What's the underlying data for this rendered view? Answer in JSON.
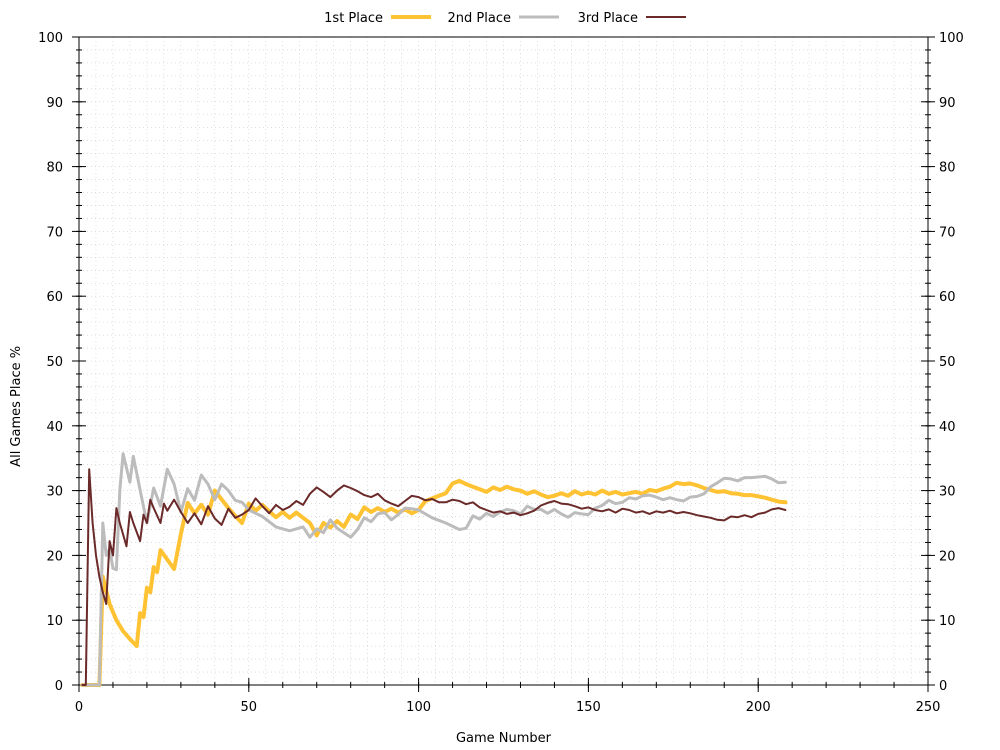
{
  "chart_data": {
    "type": "line",
    "xlabel": "Game Number",
    "ylabel": "All Games Place %",
    "xlim": [
      0,
      250
    ],
    "ylim": [
      0,
      100
    ],
    "x_ticks": [
      "0",
      "50",
      "100",
      "150",
      "200",
      "250"
    ],
    "y_ticks": [
      "0",
      "10",
      "20",
      "30",
      "40",
      "50",
      "60",
      "70",
      "80",
      "90",
      "100"
    ],
    "grid": true,
    "legend_position": "top-center",
    "series": [
      {
        "name": "1st Place",
        "color": "#FFC233",
        "width": 4,
        "points": [
          [
            1,
            0
          ],
          [
            6,
            0
          ],
          [
            7,
            16.7
          ],
          [
            9,
            12.5
          ],
          [
            11,
            10
          ],
          [
            13,
            8.3
          ],
          [
            15,
            7.1
          ],
          [
            17,
            6
          ],
          [
            18,
            11.1
          ],
          [
            19,
            10.5
          ],
          [
            20,
            15
          ],
          [
            21,
            14.3
          ],
          [
            22,
            18.2
          ],
          [
            23,
            17.4
          ],
          [
            24,
            20.8
          ],
          [
            28,
            17.9
          ],
          [
            30,
            23.3
          ],
          [
            32,
            28.1
          ],
          [
            34,
            26.5
          ],
          [
            36,
            27.8
          ],
          [
            38,
            26.3
          ],
          [
            40,
            30
          ],
          [
            44,
            27.3
          ],
          [
            46,
            26.1
          ],
          [
            48,
            25
          ],
          [
            50,
            28
          ],
          [
            52,
            26.9
          ],
          [
            54,
            27.8
          ],
          [
            56,
            26.8
          ],
          [
            58,
            25.9
          ],
          [
            60,
            26.7
          ],
          [
            62,
            25.8
          ],
          [
            64,
            26.6
          ],
          [
            66,
            25.8
          ],
          [
            68,
            25
          ],
          [
            70,
            23.1
          ],
          [
            72,
            25
          ],
          [
            74,
            24.3
          ],
          [
            76,
            25.3
          ],
          [
            78,
            24.4
          ],
          [
            80,
            26.3
          ],
          [
            82,
            25.6
          ],
          [
            84,
            27.4
          ],
          [
            86,
            26.7
          ],
          [
            88,
            27.3
          ],
          [
            90,
            26.7
          ],
          [
            92,
            27.2
          ],
          [
            94,
            26.6
          ],
          [
            96,
            27.1
          ],
          [
            98,
            26.5
          ],
          [
            100,
            27
          ],
          [
            102,
            28.4
          ],
          [
            104,
            28.8
          ],
          [
            106,
            29.2
          ],
          [
            108,
            29.6
          ],
          [
            110,
            31.1
          ],
          [
            112,
            31.5
          ],
          [
            114,
            31
          ],
          [
            116,
            30.6
          ],
          [
            118,
            30.2
          ],
          [
            120,
            29.8
          ],
          [
            122,
            30.5
          ],
          [
            124,
            30.1
          ],
          [
            126,
            30.6
          ],
          [
            128,
            30.2
          ],
          [
            130,
            30
          ],
          [
            132,
            29.5
          ],
          [
            134,
            29.9
          ],
          [
            136,
            29.4
          ],
          [
            138,
            29
          ],
          [
            140,
            29.2
          ],
          [
            142,
            29.6
          ],
          [
            144,
            29.2
          ],
          [
            146,
            29.9
          ],
          [
            148,
            29.4
          ],
          [
            150,
            29.7
          ],
          [
            152,
            29.4
          ],
          [
            154,
            30
          ],
          [
            156,
            29.5
          ],
          [
            158,
            29.8
          ],
          [
            160,
            29.4
          ],
          [
            162,
            29.6
          ],
          [
            164,
            29.8
          ],
          [
            166,
            29.5
          ],
          [
            168,
            30.1
          ],
          [
            170,
            29.9
          ],
          [
            172,
            30.3
          ],
          [
            174,
            30.6
          ],
          [
            176,
            31.2
          ],
          [
            178,
            31
          ],
          [
            180,
            31.1
          ],
          [
            182,
            30.8
          ],
          [
            184,
            30.4
          ],
          [
            186,
            30.1
          ],
          [
            188,
            29.8
          ],
          [
            190,
            29.9
          ],
          [
            192,
            29.6
          ],
          [
            194,
            29.5
          ],
          [
            196,
            29.3
          ],
          [
            198,
            29.3
          ],
          [
            200,
            29.1
          ],
          [
            202,
            28.9
          ],
          [
            204,
            28.6
          ],
          [
            206,
            28.3
          ],
          [
            208,
            28.2
          ]
        ]
      },
      {
        "name": "2nd Place",
        "color": "#BCBCBC",
        "width": 3,
        "points": [
          [
            1,
            0
          ],
          [
            6,
            0
          ],
          [
            7,
            25
          ],
          [
            8,
            20
          ],
          [
            9,
            21
          ],
          [
            10,
            18
          ],
          [
            11,
            17.8
          ],
          [
            12,
            30
          ],
          [
            13,
            35.7
          ],
          [
            15,
            31.3
          ],
          [
            16,
            35.3
          ],
          [
            18,
            30.1
          ],
          [
            20,
            25
          ],
          [
            22,
            30.4
          ],
          [
            24,
            27.6
          ],
          [
            26,
            33.3
          ],
          [
            28,
            31
          ],
          [
            30,
            26.7
          ],
          [
            32,
            30.3
          ],
          [
            34,
            28.5
          ],
          [
            36,
            32.4
          ],
          [
            38,
            31
          ],
          [
            40,
            28.6
          ],
          [
            42,
            31
          ],
          [
            44,
            30
          ],
          [
            46,
            28.5
          ],
          [
            48,
            28.2
          ],
          [
            50,
            27
          ],
          [
            54,
            26
          ],
          [
            58,
            24.4
          ],
          [
            62,
            23.8
          ],
          [
            66,
            24.4
          ],
          [
            68,
            22.8
          ],
          [
            70,
            24.1
          ],
          [
            72,
            23.5
          ],
          [
            74,
            25.5
          ],
          [
            76,
            24.2
          ],
          [
            78,
            23.5
          ],
          [
            80,
            22.8
          ],
          [
            82,
            24
          ],
          [
            84,
            25.8
          ],
          [
            86,
            25.2
          ],
          [
            88,
            26.4
          ],
          [
            90,
            26.6
          ],
          [
            92,
            25.5
          ],
          [
            94,
            26.3
          ],
          [
            96,
            27.3
          ],
          [
            98,
            27.2
          ],
          [
            100,
            27
          ],
          [
            104,
            25.8
          ],
          [
            108,
            25
          ],
          [
            112,
            24
          ],
          [
            114,
            24.2
          ],
          [
            116,
            26.1
          ],
          [
            118,
            25.6
          ],
          [
            120,
            26.5
          ],
          [
            122,
            26
          ],
          [
            124,
            26.7
          ],
          [
            126,
            27.1
          ],
          [
            128,
            26.9
          ],
          [
            130,
            26.4
          ],
          [
            132,
            27.6
          ],
          [
            134,
            27.1
          ],
          [
            136,
            27.1
          ],
          [
            138,
            26.5
          ],
          [
            140,
            27.1
          ],
          [
            142,
            26.4
          ],
          [
            144,
            25.9
          ],
          [
            146,
            26.6
          ],
          [
            148,
            26.4
          ],
          [
            150,
            26.3
          ],
          [
            152,
            27.3
          ],
          [
            154,
            27.7
          ],
          [
            156,
            28.5
          ],
          [
            158,
            28
          ],
          [
            160,
            28.2
          ],
          [
            162,
            28.9
          ],
          [
            164,
            28.7
          ],
          [
            166,
            29.2
          ],
          [
            168,
            29.3
          ],
          [
            170,
            29
          ],
          [
            172,
            28.6
          ],
          [
            174,
            28.9
          ],
          [
            176,
            28.6
          ],
          [
            178,
            28.4
          ],
          [
            180,
            29
          ],
          [
            182,
            29.1
          ],
          [
            184,
            29.5
          ],
          [
            186,
            30.6
          ],
          [
            188,
            31.2
          ],
          [
            190,
            31.9
          ],
          [
            192,
            31.8
          ],
          [
            194,
            31.5
          ],
          [
            196,
            32
          ],
          [
            198,
            32
          ],
          [
            200,
            32.1
          ],
          [
            202,
            32.2
          ],
          [
            204,
            31.8
          ],
          [
            206,
            31.2
          ],
          [
            208,
            31.3
          ]
        ]
      },
      {
        "name": "3rd Place",
        "color": "#6B2A2A",
        "width": 2,
        "points": [
          [
            1,
            0
          ],
          [
            2,
            0
          ],
          [
            3,
            33.3
          ],
          [
            4,
            25
          ],
          [
            5,
            20
          ],
          [
            6,
            16.7
          ],
          [
            7,
            14.3
          ],
          [
            8,
            12.5
          ],
          [
            9,
            22.2
          ],
          [
            10,
            20
          ],
          [
            11,
            27.3
          ],
          [
            12,
            25
          ],
          [
            14,
            21.4
          ],
          [
            15,
            26.7
          ],
          [
            16,
            25
          ],
          [
            18,
            22.2
          ],
          [
            19,
            26.3
          ],
          [
            20,
            25
          ],
          [
            21,
            28.6
          ],
          [
            22,
            27.3
          ],
          [
            24,
            25
          ],
          [
            25,
            28
          ],
          [
            26,
            26.9
          ],
          [
            28,
            28.6
          ],
          [
            30,
            26.7
          ],
          [
            32,
            25
          ],
          [
            34,
            26.5
          ],
          [
            36,
            24.8
          ],
          [
            38,
            27.6
          ],
          [
            40,
            25.7
          ],
          [
            42,
            24.7
          ],
          [
            44,
            27.2
          ],
          [
            46,
            25.8
          ],
          [
            48,
            26.3
          ],
          [
            50,
            27
          ],
          [
            52,
            28.8
          ],
          [
            54,
            27.6
          ],
          [
            56,
            26.5
          ],
          [
            58,
            27.8
          ],
          [
            60,
            27
          ],
          [
            62,
            27.5
          ],
          [
            64,
            28.4
          ],
          [
            66,
            27.8
          ],
          [
            68,
            29.5
          ],
          [
            70,
            30.5
          ],
          [
            72,
            29.8
          ],
          [
            74,
            29
          ],
          [
            76,
            30
          ],
          [
            78,
            30.8
          ],
          [
            80,
            30.4
          ],
          [
            82,
            29.9
          ],
          [
            84,
            29.3
          ],
          [
            86,
            29
          ],
          [
            88,
            29.5
          ],
          [
            90,
            28.5
          ],
          [
            92,
            28
          ],
          [
            94,
            27.6
          ],
          [
            96,
            28.4
          ],
          [
            98,
            29.2
          ],
          [
            100,
            29
          ],
          [
            102,
            28.5
          ],
          [
            104,
            28.7
          ],
          [
            106,
            28.2
          ],
          [
            108,
            28.2
          ],
          [
            110,
            28.6
          ],
          [
            112,
            28.4
          ],
          [
            114,
            27.9
          ],
          [
            116,
            28.2
          ],
          [
            118,
            27.4
          ],
          [
            120,
            27
          ],
          [
            122,
            26.6
          ],
          [
            124,
            26.8
          ],
          [
            126,
            26.4
          ],
          [
            128,
            26.6
          ],
          [
            130,
            26.2
          ],
          [
            132,
            26.5
          ],
          [
            134,
            26.9
          ],
          [
            136,
            27.7
          ],
          [
            138,
            28.1
          ],
          [
            140,
            28.4
          ],
          [
            142,
            28
          ],
          [
            144,
            27.9
          ],
          [
            146,
            27.6
          ],
          [
            148,
            27.2
          ],
          [
            150,
            27.4
          ],
          [
            152,
            27
          ],
          [
            154,
            26.8
          ],
          [
            156,
            27.1
          ],
          [
            158,
            26.6
          ],
          [
            160,
            27.2
          ],
          [
            162,
            27
          ],
          [
            164,
            26.6
          ],
          [
            166,
            26.8
          ],
          [
            168,
            26.4
          ],
          [
            170,
            26.8
          ],
          [
            172,
            26.6
          ],
          [
            174,
            26.9
          ],
          [
            176,
            26.5
          ],
          [
            178,
            26.7
          ],
          [
            180,
            26.5
          ],
          [
            182,
            26.2
          ],
          [
            184,
            26
          ],
          [
            186,
            25.8
          ],
          [
            188,
            25.5
          ],
          [
            190,
            25.4
          ],
          [
            192,
            26
          ],
          [
            194,
            25.9
          ],
          [
            196,
            26.2
          ],
          [
            198,
            25.9
          ],
          [
            200,
            26.4
          ],
          [
            202,
            26.6
          ],
          [
            204,
            27.1
          ],
          [
            206,
            27.3
          ],
          [
            208,
            27
          ]
        ]
      }
    ]
  }
}
